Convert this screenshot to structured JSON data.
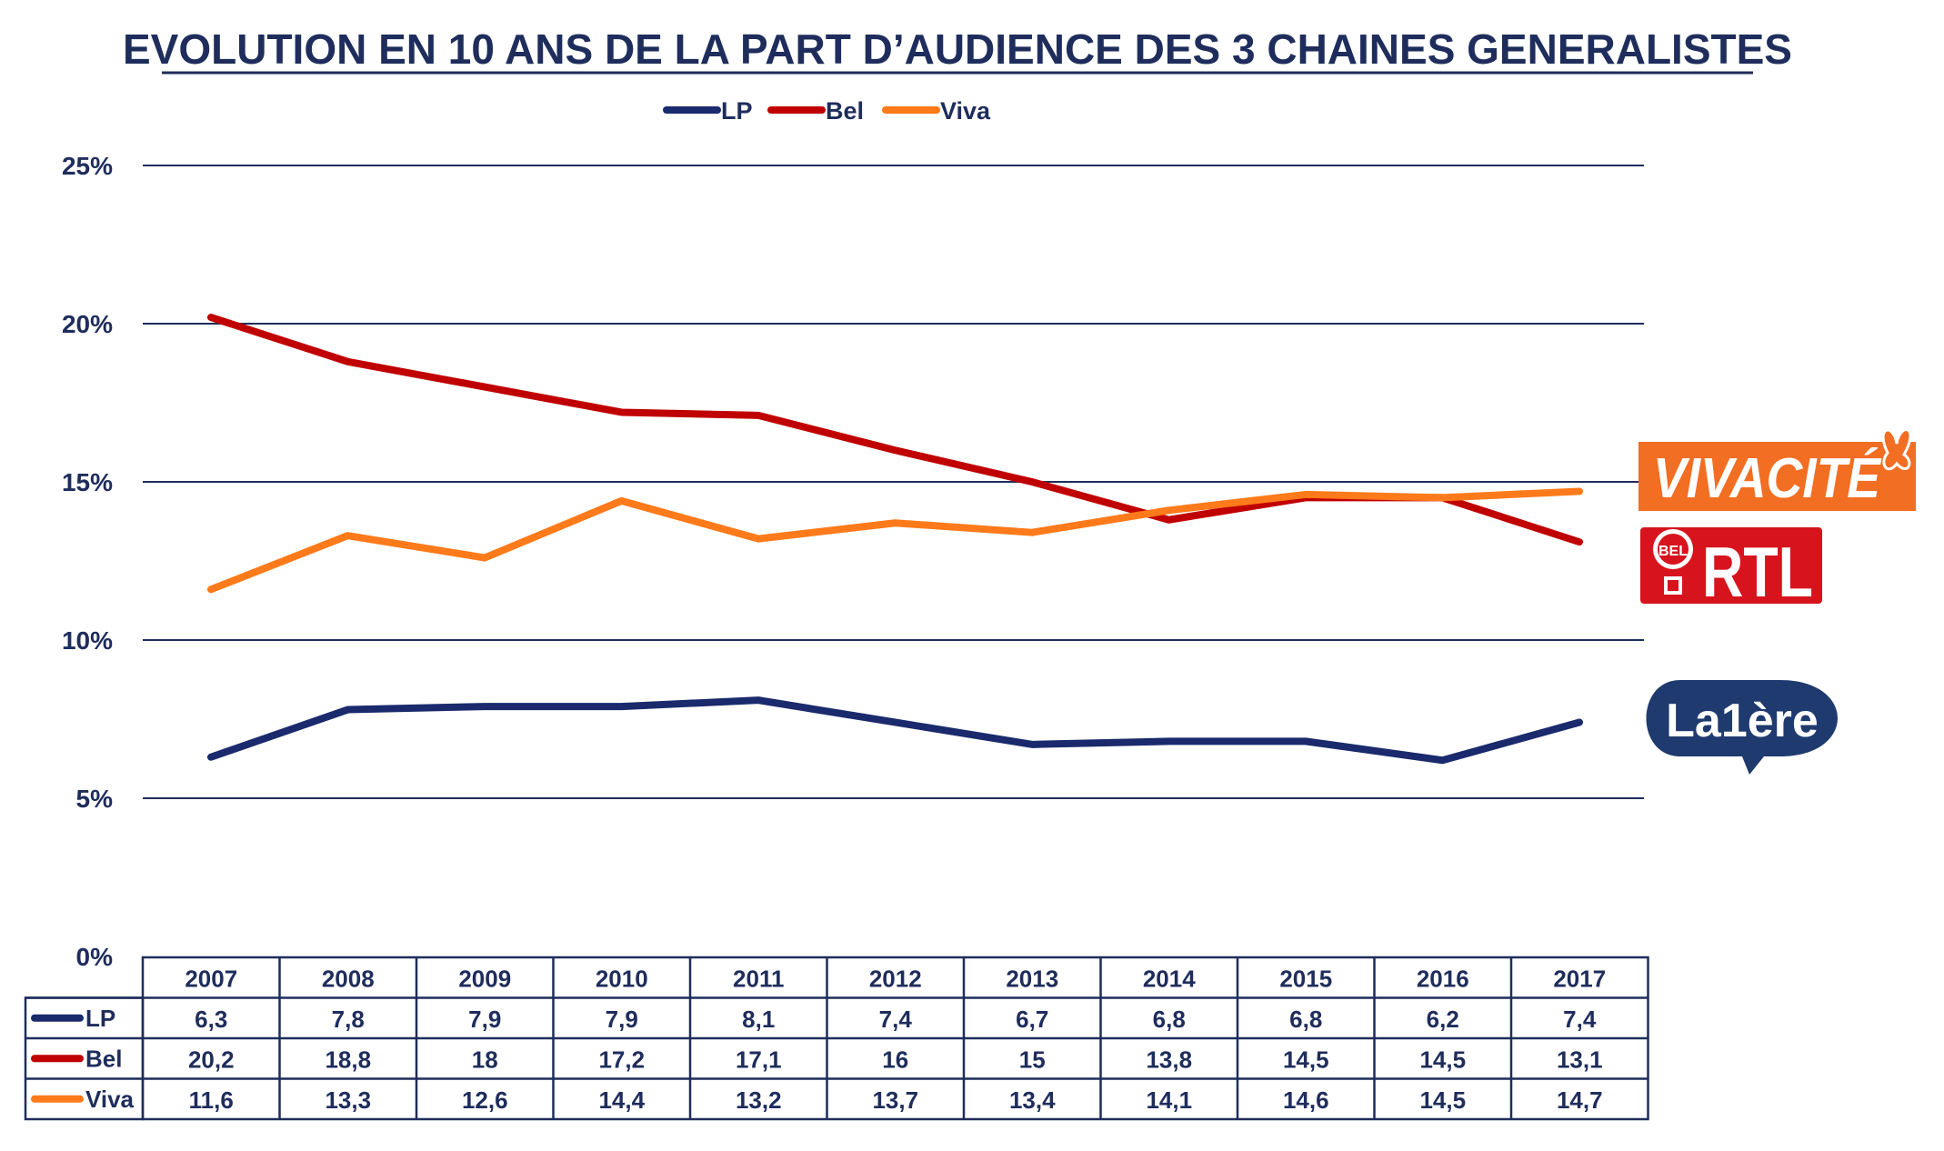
{
  "chart_data": {
    "type": "line",
    "title": "EVOLUTION EN 10 ANS DE LA PART D’AUDIENCE DES 3 CHAINES GENERALISTES",
    "categories": [
      "2007",
      "2008",
      "2009",
      "2010",
      "2011",
      "2012",
      "2013",
      "2014",
      "2015",
      "2016",
      "2017"
    ],
    "yticks": [
      "0%",
      "5%",
      "10%",
      "15%",
      "20%",
      "25%"
    ],
    "ylim": [
      0,
      25
    ],
    "grid": true,
    "legend_position": "top",
    "series": [
      {
        "name": "LP",
        "color": "#1a2a6c",
        "values": [
          6.3,
          7.8,
          7.9,
          7.9,
          8.1,
          7.4,
          6.7,
          6.8,
          6.8,
          6.2,
          7.4
        ],
        "labels": [
          "6,3",
          "7,8",
          "7,9",
          "7,9",
          "8,1",
          "7,4",
          "6,7",
          "6,8",
          "6,8",
          "6,2",
          "7,4"
        ]
      },
      {
        "name": "Bel",
        "color": "#c00000",
        "values": [
          20.2,
          18.8,
          18,
          17.2,
          17.1,
          16,
          15,
          13.8,
          14.5,
          14.5,
          13.1
        ],
        "labels": [
          "20,2",
          "18,8",
          "18",
          "17,2",
          "17,1",
          "16",
          "15",
          "13,8",
          "14,5",
          "14,5",
          "13,1"
        ]
      },
      {
        "name": "Viva",
        "color": "#ff7a1a",
        "values": [
          11.6,
          13.3,
          12.6,
          14.4,
          13.2,
          13.7,
          13.4,
          14.1,
          14.6,
          14.5,
          14.7
        ],
        "labels": [
          "11,6",
          "13,3",
          "12,6",
          "14,4",
          "13,2",
          "13,7",
          "13,4",
          "14,1",
          "14,6",
          "14,5",
          "14,7"
        ]
      }
    ]
  },
  "logos": {
    "viva": {
      "text": "VIVACITÉ",
      "icon": "butterfly-icon",
      "color": "#f26e22"
    },
    "rtl": {
      "badge": "BEL",
      "text": "RTL",
      "icon": "balloon-icon",
      "color": "#d7141d"
    },
    "la1ere": {
      "text": "La1ère",
      "color": "#1f3a6e"
    }
  }
}
